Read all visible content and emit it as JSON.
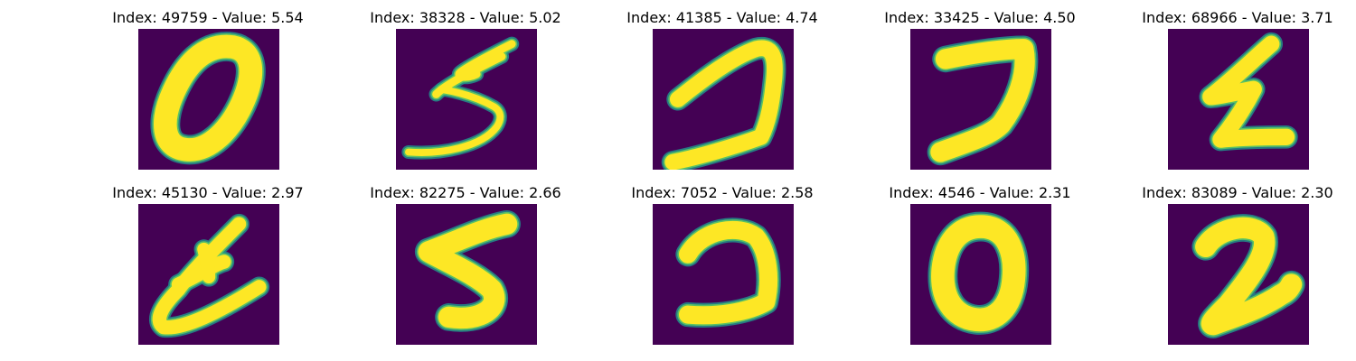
{
  "colors": {
    "background": "#440154",
    "stroke": "#fde725",
    "edge": "#21918c",
    "mid": "#5ec962"
  },
  "panels": [
    {
      "index": "49759",
      "value": "5.54",
      "title": "Index: 49759 - Value: 5.54",
      "digit_shape": "zero-tilted"
    },
    {
      "index": "38328",
      "value": "5.02",
      "title": "Index: 38328 - Value: 5.02",
      "digit_shape": "five-thin"
    },
    {
      "index": "41385",
      "value": "4.74",
      "title": "Index: 41385 - Value: 4.74",
      "digit_shape": "seven-curved"
    },
    {
      "index": "33425",
      "value": "4.50",
      "title": "Index: 33425 - Value: 4.50",
      "digit_shape": "seven-bold"
    },
    {
      "index": "68966",
      "value": "3.71",
      "title": "Index: 68966 - Value: 3.71",
      "digit_shape": "two-z"
    },
    {
      "index": "45130",
      "value": "2.97",
      "title": "Index: 45130 - Value: 2.97",
      "digit_shape": "six-like"
    },
    {
      "index": "82275",
      "value": "2.66",
      "title": "Index: 82275 - Value: 2.66",
      "digit_shape": "five-bold"
    },
    {
      "index": "7052",
      "value": "2.58",
      "title": "Index: 7052 - Value: 2.58",
      "digit_shape": "two-round"
    },
    {
      "index": "4546",
      "value": "2.31",
      "title": "Index: 4546 - Value: 2.31",
      "digit_shape": "zero-round"
    },
    {
      "index": "83089",
      "value": "2.30",
      "title": "Index: 83089 - Value: 2.30",
      "digit_shape": "two-curly"
    }
  ]
}
